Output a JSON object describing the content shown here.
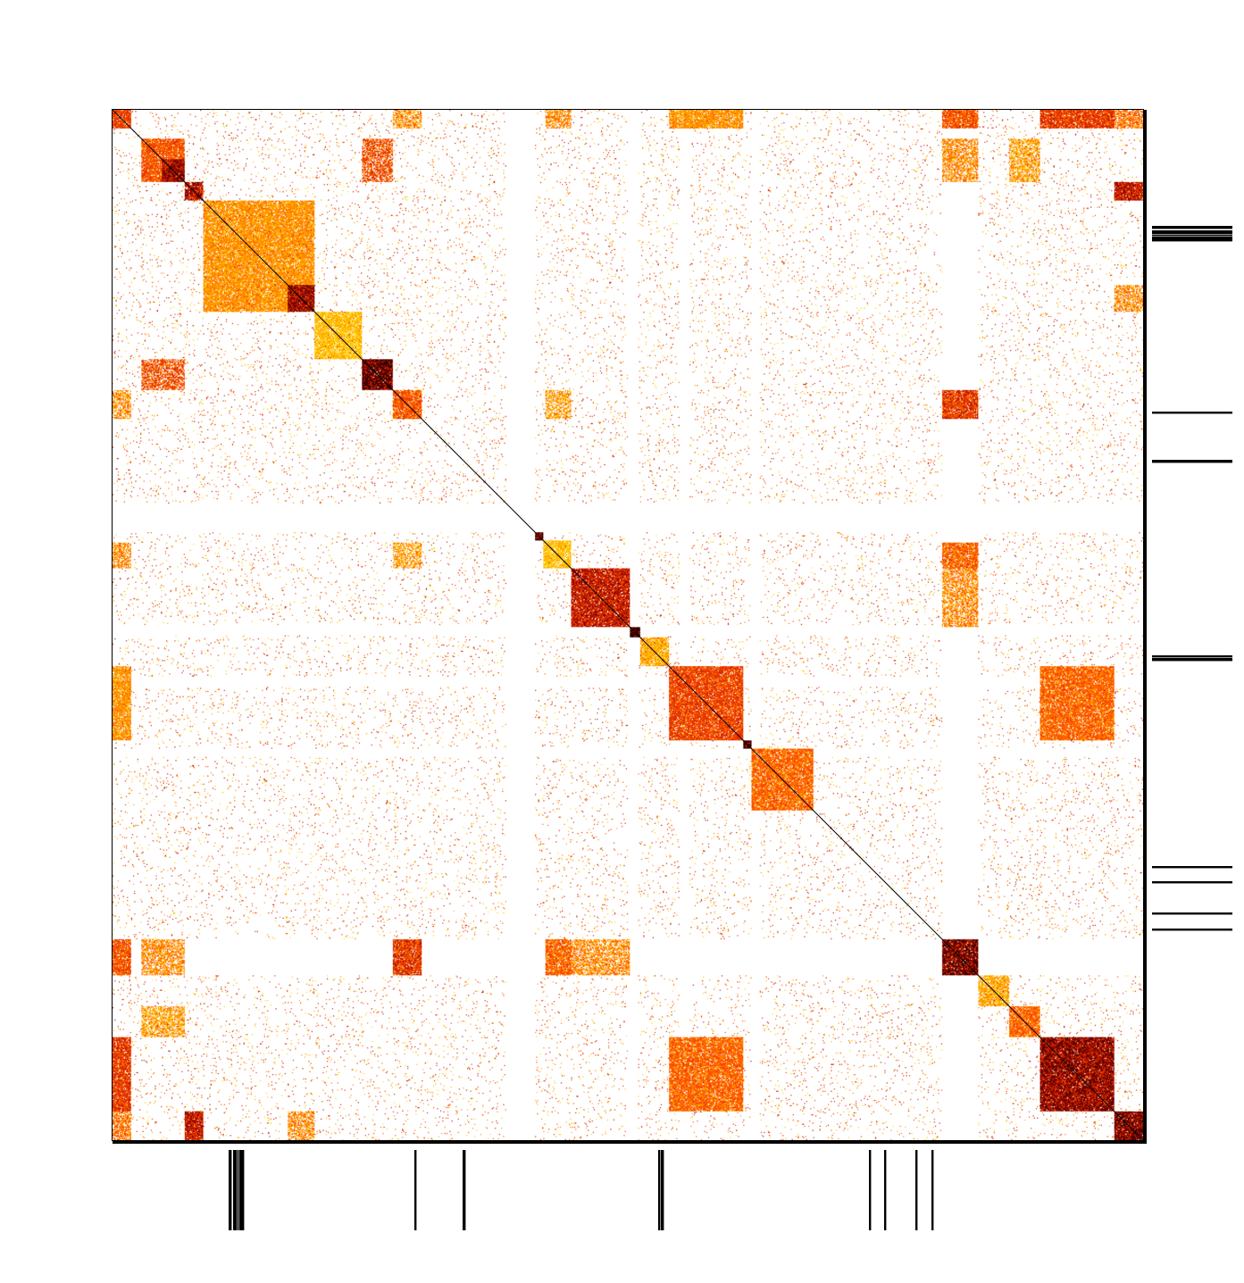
{
  "chart_data": {
    "type": "heatmap",
    "title": "",
    "xlabel": "",
    "ylabel": "",
    "n": 1000,
    "axes": {
      "x": [
        0,
        1000
      ],
      "y": [
        0,
        1000
      ]
    },
    "grid": false,
    "legend": "none",
    "colormap": [
      "#ffffff",
      "#ffff99",
      "#ffd700",
      "#ff8c00",
      "#ff4500",
      "#cc2200",
      "#8b0000",
      "#2b0000"
    ],
    "diagonal_color": "#000000",
    "clusters": [
      {
        "start": 0,
        "end": 18,
        "intensity": 0.55
      },
      {
        "start": 28,
        "end": 70,
        "intensity": 0.5
      },
      {
        "start": 48,
        "end": 70,
        "intensity": 0.8
      },
      {
        "start": 70,
        "end": 88,
        "intensity": 0.75
      },
      {
        "start": 88,
        "end": 196,
        "intensity": 0.35
      },
      {
        "start": 170,
        "end": 196,
        "intensity": 0.8
      },
      {
        "start": 196,
        "end": 242,
        "intensity": 0.25
      },
      {
        "start": 242,
        "end": 272,
        "intensity": 0.9
      },
      {
        "start": 272,
        "end": 300,
        "intensity": 0.5
      },
      {
        "start": 410,
        "end": 418,
        "intensity": 0.9
      },
      {
        "start": 418,
        "end": 445,
        "intensity": 0.25
      },
      {
        "start": 445,
        "end": 502,
        "intensity": 0.7
      },
      {
        "start": 502,
        "end": 512,
        "intensity": 1.0
      },
      {
        "start": 512,
        "end": 540,
        "intensity": 0.3
      },
      {
        "start": 540,
        "end": 612,
        "intensity": 0.55
      },
      {
        "start": 612,
        "end": 620,
        "intensity": 0.95
      },
      {
        "start": 620,
        "end": 680,
        "intensity": 0.45
      },
      {
        "start": 805,
        "end": 840,
        "intensity": 0.85
      },
      {
        "start": 840,
        "end": 870,
        "intensity": 0.3
      },
      {
        "start": 870,
        "end": 900,
        "intensity": 0.45
      },
      {
        "start": 900,
        "end": 972,
        "intensity": 0.8
      },
      {
        "start": 972,
        "end": 1000,
        "intensity": 0.85
      }
    ],
    "cross_blocks": [
      {
        "rows": [
          0,
          18
        ],
        "cols": [
          272,
          300
        ],
        "intensity": 0.4
      },
      {
        "rows": [
          0,
          18
        ],
        "cols": [
          420,
          445
        ],
        "intensity": 0.4
      },
      {
        "rows": [
          0,
          18
        ],
        "cols": [
          540,
          612
        ],
        "intensity": 0.35
      },
      {
        "rows": [
          0,
          18
        ],
        "cols": [
          805,
          840
        ],
        "intensity": 0.45
      },
      {
        "rows": [
          0,
          18
        ],
        "cols": [
          900,
          972
        ],
        "intensity": 0.6
      },
      {
        "rows": [
          28,
          70
        ],
        "cols": [
          242,
          272
        ],
        "intensity": 0.55
      },
      {
        "rows": [
          28,
          70
        ],
        "cols": [
          805,
          840
        ],
        "intensity": 0.4
      },
      {
        "rows": [
          28,
          70
        ],
        "cols": [
          870,
          900
        ],
        "intensity": 0.35
      },
      {
        "rows": [
          70,
          88
        ],
        "cols": [
          972,
          1000
        ],
        "intensity": 0.7
      },
      {
        "rows": [
          0,
          18
        ],
        "cols": [
          972,
          1000
        ],
        "intensity": 0.45
      },
      {
        "rows": [
          272,
          300
        ],
        "cols": [
          805,
          840
        ],
        "intensity": 0.5
      },
      {
        "rows": [
          272,
          300
        ],
        "cols": [
          420,
          445
        ],
        "intensity": 0.35
      },
      {
        "rows": [
          420,
          502
        ],
        "cols": [
          805,
          840
        ],
        "intensity": 0.4
      },
      {
        "rows": [
          540,
          612
        ],
        "cols": [
          900,
          972
        ],
        "intensity": 0.45
      },
      {
        "rows": [
          540,
          612
        ],
        "cols": [
          0,
          18
        ],
        "intensity": 0.35
      },
      {
        "rows": [
          805,
          840
        ],
        "cols": [
          0,
          18
        ],
        "intensity": 0.55
      },
      {
        "rows": [
          805,
          840
        ],
        "cols": [
          272,
          300
        ],
        "intensity": 0.65
      },
      {
        "rows": [
          805,
          840
        ],
        "cols": [
          420,
          445
        ],
        "intensity": 0.5
      },
      {
        "rows": [
          900,
          972
        ],
        "cols": [
          540,
          612
        ],
        "intensity": 0.45
      },
      {
        "rows": [
          900,
          972
        ],
        "cols": [
          0,
          18
        ],
        "intensity": 0.55
      },
      {
        "rows": [
          972,
          1000
        ],
        "cols": [
          70,
          88
        ],
        "intensity": 0.7
      },
      {
        "rows": [
          972,
          1000
        ],
        "cols": [
          170,
          196
        ],
        "intensity": 0.4
      }
    ],
    "blank_bands": [
      [
        382,
        410
      ],
      [
        500,
        510
      ],
      [
        550,
        560
      ],
      [
        620,
        628
      ],
      [
        805,
        840
      ]
    ],
    "noise_density": 0.035,
    "marked_indices": [
      113,
      114,
      115,
      117,
      118,
      119,
      120,
      122,
      123,
      124,
      125,
      126,
      127,
      293,
      294,
      340,
      341,
      342,
      530,
      531,
      532,
      533,
      534,
      734,
      735,
      749,
      750,
      779,
      780,
      795,
      796
    ],
    "colors": {
      "border": "#000000",
      "background": "#ffffff"
    }
  }
}
